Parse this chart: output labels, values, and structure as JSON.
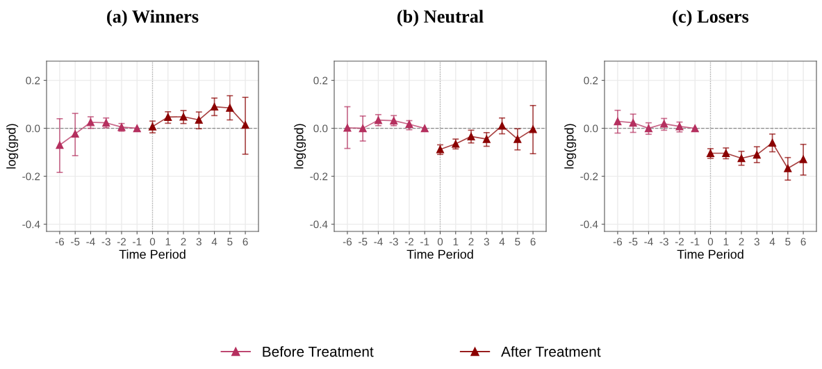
{
  "chart_data": [
    {
      "type": "line",
      "title": "(a) Winners",
      "xlabel": "Time Period",
      "ylabel": "log(gpd)",
      "xlim": [
        -6.85,
        6.85
      ],
      "xticks": [
        -6,
        -5,
        -4,
        -3,
        -2,
        -1,
        0,
        1,
        2,
        3,
        4,
        5,
        6
      ],
      "ylim": [
        -0.43,
        0.28
      ],
      "yticks": [
        {
          "value": -0.4,
          "label": "-0.4"
        },
        {
          "value": -0.2,
          "label": "-0.2"
        },
        {
          "value": 0,
          "label": "0.0"
        },
        {
          "value": 0.2,
          "label": "0.2"
        }
      ],
      "grid": true,
      "marker": "triangle",
      "line_style": "solid",
      "legend": "bottom",
      "ref_lines": [
        {
          "axis": "y",
          "value": 0,
          "line_style": "dashed",
          "color": "#888888"
        },
        {
          "axis": "x",
          "value": 0,
          "line_style": "dotted",
          "color": "#aaaaaa"
        }
      ],
      "series": [
        {
          "name": "Before Treatment",
          "color": "#b5305f",
          "x": [
            -6,
            -5,
            -4,
            -3,
            -2,
            -1
          ],
          "values": [
            -0.07,
            -0.023,
            0.025,
            0.023,
            0.005,
            0
          ],
          "errors": [
            [
              -0.184,
              0.04
            ],
            [
              -0.114,
              0.062
            ],
            [
              0,
              0.048
            ],
            [
              0.002,
              0.043
            ],
            [
              -0.012,
              0.02
            ],
            null
          ]
        },
        {
          "name": "After Treatment",
          "color": "#8b0000",
          "x": [
            0,
            1,
            2,
            3,
            4,
            5,
            6
          ],
          "values": [
            0.007,
            0.047,
            0.048,
            0.035,
            0.09,
            0.085,
            0.014
          ],
          "errors": [
            [
              -0.019,
              0.03
            ],
            [
              0.021,
              0.069
            ],
            [
              0.02,
              0.074
            ],
            [
              -0.002,
              0.068
            ],
            [
              0.053,
              0.126
            ],
            [
              0.035,
              0.136
            ],
            [
              -0.108,
              0.129
            ]
          ]
        }
      ]
    },
    {
      "type": "line",
      "title": "(b) Neutral",
      "xlabel": "Time Period",
      "ylabel": "log(gpd)",
      "xlim": [
        -6.85,
        6.85
      ],
      "xticks": [
        -6,
        -5,
        -4,
        -3,
        -2,
        -1,
        0,
        1,
        2,
        3,
        4,
        5,
        6
      ],
      "ylim": [
        -0.43,
        0.28
      ],
      "yticks": [
        {
          "value": -0.4,
          "label": "-0.4"
        },
        {
          "value": -0.2,
          "label": "-0.2"
        },
        {
          "value": 0,
          "label": "0.0"
        },
        {
          "value": 0.2,
          "label": "0.2"
        }
      ],
      "grid": true,
      "marker": "triangle",
      "line_style": "solid",
      "ref_lines": [
        {
          "axis": "y",
          "value": 0,
          "line_style": "dashed",
          "color": "#888888"
        },
        {
          "axis": "x",
          "value": 0,
          "line_style": "dotted",
          "color": "#aaaaaa"
        }
      ],
      "series": [
        {
          "color": "#b5305f",
          "x": [
            -6,
            -5,
            -4,
            -3,
            -2,
            -1
          ],
          "values": [
            0.002,
            0,
            0.034,
            0.032,
            0.017,
            0
          ],
          "errors": [
            [
              -0.084,
              0.09
            ],
            [
              -0.053,
              0.051
            ],
            [
              0.011,
              0.057
            ],
            [
              0.011,
              0.053
            ],
            [
              -0.006,
              0.032
            ],
            null
          ]
        },
        {
          "color": "#8b0000",
          "x": [
            0,
            1,
            2,
            3,
            4,
            5,
            6
          ],
          "values": [
            -0.088,
            -0.065,
            -0.034,
            -0.045,
            0.011,
            -0.045,
            -0.004
          ],
          "errors": [
            [
              -0.109,
              -0.069
            ],
            [
              -0.086,
              -0.045
            ],
            [
              -0.061,
              -0.008
            ],
            [
              -0.075,
              -0.018
            ],
            [
              -0.023,
              0.043
            ],
            [
              -0.09,
              -0.002
            ],
            [
              -0.106,
              0.095
            ]
          ]
        }
      ]
    },
    {
      "type": "line",
      "title": "(c) Losers",
      "xlabel": "Time Period",
      "ylabel": "log(gpd)",
      "xlim": [
        -6.85,
        6.85
      ],
      "xticks": [
        -6,
        -5,
        -4,
        -3,
        -2,
        -1,
        0,
        1,
        2,
        3,
        4,
        5,
        6
      ],
      "ylim": [
        -0.43,
        0.28
      ],
      "yticks": [
        {
          "value": -0.4,
          "label": "-0.4"
        },
        {
          "value": -0.2,
          "label": "-0.2"
        },
        {
          "value": 0,
          "label": "0.0"
        },
        {
          "value": 0.2,
          "label": "0.2"
        }
      ],
      "grid": true,
      "marker": "triangle",
      "line_style": "solid",
      "ref_lines": [
        {
          "axis": "y",
          "value": 0,
          "line_style": "dashed",
          "color": "#888888"
        },
        {
          "axis": "x",
          "value": 0,
          "line_style": "dotted",
          "color": "#aaaaaa"
        }
      ],
      "series": [
        {
          "color": "#b5305f",
          "x": [
            -6,
            -5,
            -4,
            -3,
            -2,
            -1
          ],
          "values": [
            0.029,
            0.023,
            0,
            0.019,
            0.008,
            0
          ],
          "errors": [
            [
              -0.02,
              0.075
            ],
            [
              -0.017,
              0.059
            ],
            [
              -0.025,
              0.023
            ],
            [
              -0.008,
              0.041
            ],
            [
              -0.015,
              0.026
            ],
            null
          ]
        },
        {
          "color": "#8b0000",
          "x": [
            0,
            1,
            2,
            3,
            4,
            5,
            6
          ],
          "values": [
            -0.104,
            -0.104,
            -0.125,
            -0.11,
            -0.06,
            -0.167,
            -0.129
          ],
          "errors": [
            [
              -0.125,
              -0.085
            ],
            [
              -0.127,
              -0.082
            ],
            [
              -0.154,
              -0.096
            ],
            [
              -0.143,
              -0.077
            ],
            [
              -0.098,
              -0.024
            ],
            [
              -0.216,
              -0.122
            ],
            [
              -0.195,
              -0.067
            ]
          ]
        }
      ]
    }
  ]
}
